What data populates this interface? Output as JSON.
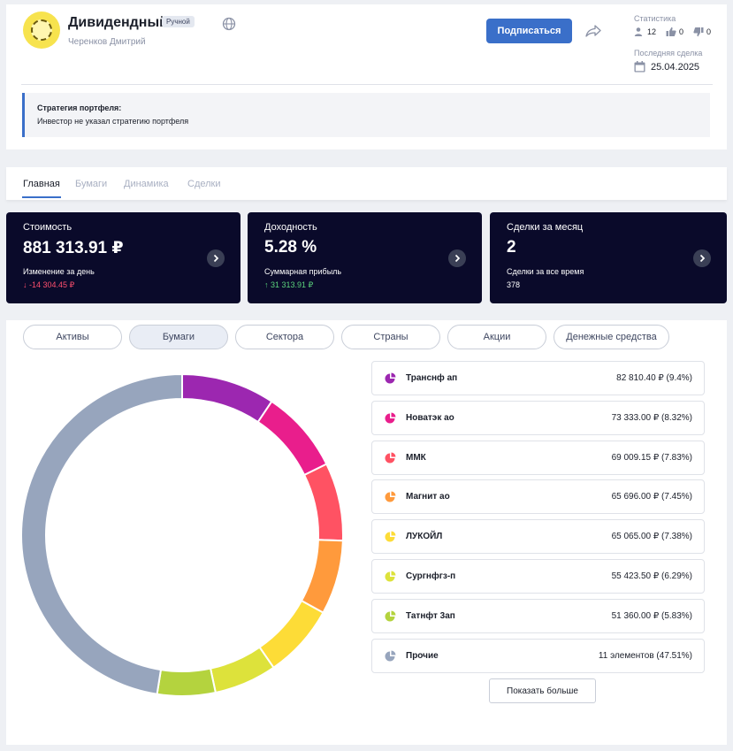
{
  "portfolio": {
    "title": "Дивидендный",
    "badge": "Ручной",
    "author": "Черенков Дмитрий",
    "subscribe_label": "Подписаться",
    "stats_label": "Статистика",
    "followers": "12",
    "likes": "0",
    "dislikes": "0",
    "last_deal_label": "Последняя сделка",
    "last_deal_date": "25.04.2025",
    "strategy_title": "Стратегия портфеля:",
    "strategy_text": "Инвестор не указал стратегию портфеля",
    "avatar_color": "#f7e34e",
    "accent_color": "#3a6fc9"
  },
  "tabs": [
    {
      "label": "Главная",
      "active": true
    },
    {
      "label": "Бумаги",
      "active": false
    },
    {
      "label": "Динамика",
      "active": false
    },
    {
      "label": "Сделки",
      "active": false
    }
  ],
  "metrics": [
    {
      "label": "Стоимость",
      "value": "881 313.91 ₽",
      "sub_label": "Изменение за день",
      "sub_value": "↓ -14 304.45 ₽",
      "direction": "down"
    },
    {
      "label": "Доходность",
      "value": "5.28 %",
      "sub_label": "Суммарная прибыль",
      "sub_value": "↑ 31 313.91 ₽",
      "direction": "up"
    },
    {
      "label": "Сделки за месяц",
      "value": "2",
      "sub_label": "Сделки за все время",
      "sub_value": "378",
      "direction": "none"
    }
  ],
  "filters": [
    {
      "label": "Активы",
      "active": false
    },
    {
      "label": "Бумаги",
      "active": true
    },
    {
      "label": "Сектора",
      "active": false
    },
    {
      "label": "Страны",
      "active": false
    },
    {
      "label": "Акции",
      "active": false
    },
    {
      "label": "Денежные средства",
      "active": false
    }
  ],
  "chart_data": {
    "type": "pie",
    "donut": true,
    "categories": [
      "Транснф ап",
      "Новатэк ао",
      "ММК",
      "Магнит ао",
      "ЛУКОЙЛ",
      "Сургнфгз-п",
      "Татнфт 3ап",
      "Прочие"
    ],
    "values": [
      9.4,
      8.32,
      7.83,
      7.45,
      7.38,
      6.29,
      5.83,
      47.51
    ],
    "colors": [
      "#9c27b0",
      "#e91e8c",
      "#ff5263",
      "#ff9a3c",
      "#fddc37",
      "#dde23b",
      "#b4d33e",
      "#97a5bd"
    ],
    "labels": [
      "82 810.40 ₽ (9.4%)",
      "73 333.00 ₽ (8.32%)",
      "69 009.15 ₽ (7.83%)",
      "65 696.00 ₽ (7.45%)",
      "65 065.00 ₽ (7.38%)",
      "55 423.50 ₽ (6.29%)",
      "51 360.00 ₽ (5.83%)",
      "11 элементов (47.51%)"
    ]
  },
  "show_more_label": "Показать больше"
}
